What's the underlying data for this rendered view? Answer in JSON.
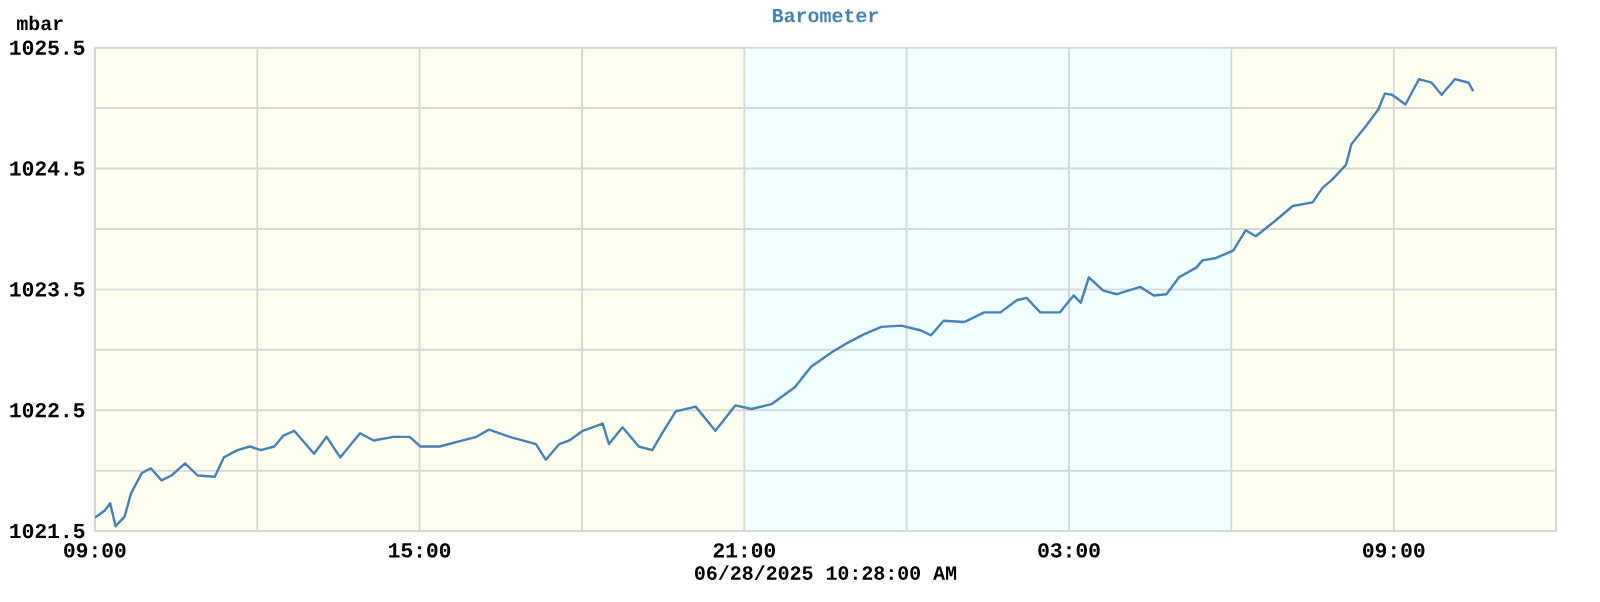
{
  "chart_data": {
    "type": "line",
    "title": "Barometer",
    "ylabel": "mbar",
    "xlabel": "06/28/2025 10:28:00 AM",
    "xlim": [
      "2025-06-27T09:00",
      "2025-06-28T12:00"
    ],
    "ylim": [
      1021.5,
      1025.5
    ],
    "xticks": [
      {
        "value": "2025-06-27T09:00",
        "label": "09:00"
      },
      {
        "value": "2025-06-27T12:00",
        "label": null
      },
      {
        "value": "2025-06-27T15:00",
        "label": "15:00"
      },
      {
        "value": "2025-06-27T18:00",
        "label": null
      },
      {
        "value": "2025-06-27T21:00",
        "label": "21:00"
      },
      {
        "value": "2025-06-28T00:00",
        "label": null
      },
      {
        "value": "2025-06-28T03:00",
        "label": "03:00"
      },
      {
        "value": "2025-06-28T06:00",
        "label": null
      },
      {
        "value": "2025-06-28T09:00",
        "label": "09:00"
      },
      {
        "value": "2025-06-28T12:00",
        "label": null
      }
    ],
    "yticks": [
      1021.5,
      {
        "value": 1022,
        "label": null
      },
      1022.5,
      {
        "value": 1023,
        "label": null
      },
      1023.5,
      {
        "value": 1024,
        "label": null
      },
      1024.5,
      {
        "value": 1025,
        "label": null
      },
      1025.5
    ],
    "grid": true,
    "marker": "none",
    "line_style": "solid",
    "bands": [
      {
        "axis": "x",
        "from": "2025-06-27T21:00",
        "to": "2025-06-28T06:00",
        "color": "#f0ffff"
      }
    ],
    "series": [
      {
        "color": "#4682b4",
        "x": [
          "2025-06-27T09:00",
          "2025-06-27T09:11",
          "2025-06-27T09:17",
          "2025-06-27T09:23",
          "2025-06-27T09:33",
          "2025-06-27T09:40",
          "2025-06-27T09:52",
          "2025-06-27T10:02",
          "2025-06-27T10:14",
          "2025-06-27T10:25",
          "2025-06-27T10:40",
          "2025-06-27T10:54",
          "2025-06-27T11:13",
          "2025-06-27T11:23",
          "2025-06-27T11:38",
          "2025-06-27T11:52",
          "2025-06-27T12:04",
          "2025-06-27T12:19",
          "2025-06-27T12:29",
          "2025-06-27T12:41",
          "2025-06-27T13:03",
          "2025-06-27T13:17",
          "2025-06-27T13:32",
          "2025-06-27T13:54",
          "2025-06-27T14:09",
          "2025-06-27T14:31",
          "2025-06-27T14:49",
          "2025-06-27T15:01",
          "2025-06-27T15:22",
          "2025-06-27T15:48",
          "2025-06-27T16:03",
          "2025-06-27T16:17",
          "2025-06-27T16:40",
          "2025-06-27T17:09",
          "2025-06-27T17:20",
          "2025-06-27T17:35",
          "2025-06-27T17:46",
          "2025-06-27T18:01",
          "2025-06-27T18:23",
          "2025-06-27T18:30",
          "2025-06-27T18:45",
          "2025-06-27T19:03",
          "2025-06-27T19:18",
          "2025-06-27T19:29",
          "2025-06-27T19:44",
          "2025-06-27T20:06",
          "2025-06-27T20:28",
          "2025-06-27T20:50",
          "2025-06-27T21:08",
          "2025-06-27T21:30",
          "2025-06-27T21:56",
          "2025-06-27T22:14",
          "2025-06-27T22:37",
          "2025-06-27T22:55",
          "2025-06-27T23:13",
          "2025-06-27T23:32",
          "2025-06-27T23:54",
          "2025-06-28T00:16",
          "2025-06-28T00:27",
          "2025-06-28T00:41",
          "2025-06-28T01:04",
          "2025-06-28T01:26",
          "2025-06-28T01:44",
          "2025-06-28T02:02",
          "2025-06-28T02:13",
          "2025-06-28T02:28",
          "2025-06-28T02:50",
          "2025-06-28T03:05",
          "2025-06-28T03:13",
          "2025-06-28T03:22",
          "2025-06-28T03:38",
          "2025-06-28T03:53",
          "2025-06-28T04:19",
          "2025-06-28T04:34",
          "2025-06-28T04:48",
          "2025-06-28T05:02",
          "2025-06-28T05:21",
          "2025-06-28T05:28",
          "2025-06-28T05:43",
          "2025-06-28T06:02",
          "2025-06-28T06:16",
          "2025-06-28T06:27",
          "2025-06-28T06:49",
          "2025-06-28T07:08",
          "2025-06-28T07:30",
          "2025-06-28T07:41",
          "2025-06-28T07:52",
          "2025-06-28T08:07",
          "2025-06-28T08:13",
          "2025-06-28T08:29",
          "2025-06-28T08:43",
          "2025-06-28T08:50",
          "2025-06-28T08:58",
          "2025-06-28T09:13",
          "2025-06-28T09:28",
          "2025-06-28T09:42",
          "2025-06-28T09:53",
          "2025-06-28T10:08",
          "2025-06-28T10:23",
          "2025-06-28T10:28"
        ],
        "values": [
          1021.61,
          1021.67,
          1021.73,
          1021.54,
          1021.62,
          1021.81,
          1021.98,
          1022.02,
          1021.92,
          1021.96,
          1022.06,
          1021.96,
          1021.95,
          1022.11,
          1022.17,
          1022.2,
          1022.17,
          1022.2,
          1022.29,
          1022.33,
          1022.14,
          1022.28,
          1022.11,
          1022.31,
          1022.25,
          1022.28,
          1022.28,
          1022.2,
          1022.2,
          1022.25,
          1022.28,
          1022.34,
          1022.28,
          1022.22,
          1022.09,
          1022.22,
          1022.25,
          1022.33,
          1022.39,
          1022.22,
          1022.36,
          1022.2,
          1022.17,
          1022.31,
          1022.49,
          1022.53,
          1022.33,
          1022.54,
          1022.51,
          1022.55,
          1022.69,
          1022.86,
          1022.98,
          1023.06,
          1023.13,
          1023.19,
          1023.2,
          1023.16,
          1023.12,
          1023.24,
          1023.23,
          1023.31,
          1023.31,
          1023.41,
          1023.43,
          1023.31,
          1023.31,
          1023.45,
          1023.39,
          1023.6,
          1023.49,
          1023.46,
          1023.52,
          1023.45,
          1023.46,
          1023.6,
          1023.68,
          1023.74,
          1023.76,
          1023.82,
          1023.99,
          1023.94,
          1024.07,
          1024.19,
          1024.22,
          1024.34,
          1024.41,
          1024.53,
          1024.7,
          1024.85,
          1024.99,
          1025.12,
          1025.11,
          1025.03,
          1025.24,
          1025.21,
          1025.11,
          1025.24,
          1025.21,
          1025.14
        ]
      }
    ]
  }
}
